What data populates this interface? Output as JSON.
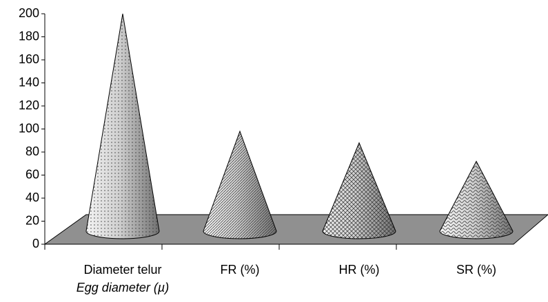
{
  "chart_data": {
    "type": "cone",
    "categories": [
      "Diameter telur",
      "FR (%)",
      "HR (%)",
      "SR (%)"
    ],
    "category_note": "Egg diameter (µ)",
    "values": [
      200,
      98,
      88,
      72
    ],
    "ylim": [
      0,
      200
    ],
    "yticks": [
      0,
      20,
      40,
      60,
      80,
      100,
      120,
      140,
      160,
      180,
      200
    ],
    "floor_color": "#909090",
    "color": "#d8d8d8"
  }
}
